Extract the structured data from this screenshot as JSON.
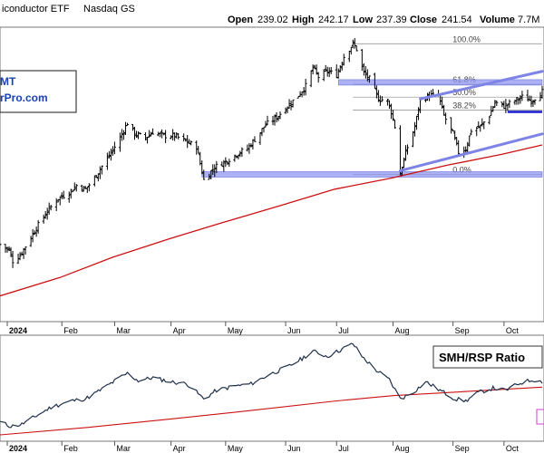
{
  "header": {
    "title": "iconductor ETF",
    "exchange": "Nasdaq GS",
    "open_label": "Open",
    "open_value": "239.02",
    "high_label": "High",
    "high_value": "242.17",
    "low_label": "Low",
    "low_value": "237.39",
    "close_label": "Close",
    "close_value": "241.54",
    "volume_label": "Volume",
    "volume_value": "7.7M"
  },
  "logo": {
    "line1": "MT",
    "line2": "rPro.com"
  },
  "ratio_legend": "SMH/RSP Ratio",
  "colors": {
    "price_bars": "#000000",
    "sma_line": "#cc1111",
    "support_band": "#8f97ee",
    "trendline": "#7d84e6",
    "ratio_line": "#1f2e4a",
    "ratio_ma": "#cc1111",
    "marker": "#1a1acc"
  },
  "chart_data": [
    {
      "type": "bar",
      "subtype": "ohlc",
      "title": "",
      "x_labels": [
        {
          "label": "2024",
          "date": "2024-01-02"
        },
        {
          "label": "Feb",
          "date": "2024-02-01"
        },
        {
          "label": "Mar",
          "date": "2024-03-01"
        },
        {
          "label": "Apr",
          "date": "2024-04-01"
        },
        {
          "label": "May",
          "date": "2024-05-01"
        },
        {
          "label": "Jun",
          "date": "2024-06-03"
        },
        {
          "label": "Jul",
          "date": "2024-07-01"
        },
        {
          "label": "Aug",
          "date": "2024-08-01"
        },
        {
          "label": "Sep",
          "date": "2024-09-03"
        },
        {
          "label": "Oct",
          "date": "2024-10-01"
        }
      ],
      "xlim": [
        "2023-12-29",
        "2024-10-23"
      ],
      "ylim": [
        130,
        290
      ],
      "close_path": [
        [
          "2023-12-29",
          172
        ],
        [
          "2024-01-03",
          169
        ],
        [
          "2024-01-05",
          163
        ],
        [
          "2024-01-09",
          166
        ],
        [
          "2024-01-12",
          171
        ],
        [
          "2024-01-18",
          181
        ],
        [
          "2024-01-24",
          190
        ],
        [
          "2024-01-30",
          197
        ],
        [
          "2024-02-05",
          200
        ],
        [
          "2024-02-09",
          204
        ],
        [
          "2024-02-14",
          202
        ],
        [
          "2024-02-19",
          208
        ],
        [
          "2024-02-22",
          213
        ],
        [
          "2024-02-27",
          220
        ],
        [
          "2024-03-04",
          230
        ],
        [
          "2024-03-08",
          238
        ],
        [
          "2024-03-12",
          232
        ],
        [
          "2024-03-18",
          230
        ],
        [
          "2024-03-22",
          233
        ],
        [
          "2024-03-28",
          231
        ],
        [
          "2024-04-03",
          231
        ],
        [
          "2024-04-09",
          228
        ],
        [
          "2024-04-15",
          225
        ],
        [
          "2024-04-19",
          207
        ],
        [
          "2024-04-25",
          214
        ],
        [
          "2024-05-01",
          217
        ],
        [
          "2024-05-07",
          221
        ],
        [
          "2024-05-13",
          224
        ],
        [
          "2024-05-17",
          229
        ],
        [
          "2024-05-23",
          237
        ],
        [
          "2024-05-29",
          241
        ],
        [
          "2024-06-04",
          247
        ],
        [
          "2024-06-10",
          253
        ],
        [
          "2024-06-14",
          258
        ],
        [
          "2024-06-18",
          268
        ],
        [
          "2024-06-21",
          263
        ],
        [
          "2024-06-26",
          266
        ],
        [
          "2024-07-01",
          264
        ],
        [
          "2024-07-05",
          274
        ],
        [
          "2024-07-10",
          281
        ],
        [
          "2024-07-12",
          278
        ],
        [
          "2024-07-16",
          265
        ],
        [
          "2024-07-19",
          262
        ],
        [
          "2024-07-24",
          251
        ],
        [
          "2024-07-29",
          250
        ],
        [
          "2024-07-31",
          244
        ],
        [
          "2024-08-02",
          236
        ],
        [
          "2024-08-05",
          210
        ],
        [
          "2024-08-08",
          222
        ],
        [
          "2024-08-13",
          236
        ],
        [
          "2024-08-16",
          250
        ],
        [
          "2024-08-21",
          253
        ],
        [
          "2024-08-26",
          253
        ],
        [
          "2024-08-29",
          242
        ],
        [
          "2024-09-03",
          232
        ],
        [
          "2024-09-06",
          222
        ],
        [
          "2024-09-10",
          224
        ],
        [
          "2024-09-13",
          234
        ],
        [
          "2024-09-18",
          236
        ],
        [
          "2024-09-23",
          242
        ],
        [
          "2024-09-26",
          249
        ],
        [
          "2024-10-01",
          247
        ],
        [
          "2024-10-07",
          250
        ],
        [
          "2024-10-11",
          252
        ],
        [
          "2024-10-16",
          250
        ],
        [
          "2024-10-22",
          255
        ]
      ],
      "sma_series": {
        "values": [
          [
            "2023-12-29",
            144
          ],
          [
            "2024-01-31",
            154
          ],
          [
            "2024-02-29",
            165
          ],
          [
            "2024-03-31",
            175
          ],
          [
            "2024-04-30",
            184
          ],
          [
            "2024-05-31",
            193
          ],
          [
            "2024-06-30",
            202
          ],
          [
            "2024-07-31",
            208
          ],
          [
            "2024-08-31",
            215
          ],
          [
            "2024-09-30",
            221
          ],
          [
            "2024-10-22",
            226
          ]
        ]
      },
      "support_zones": [
        {
          "price": 260,
          "from": "2024-07-02",
          "to": "2024-10-22"
        },
        {
          "price": 210,
          "from": "2024-04-18",
          "to": "2024-10-22"
        }
      ],
      "trendlines": [
        {
          "from": [
            "2024-08-05",
            212
          ],
          "to": [
            "2024-10-22",
            232
          ]
        },
        {
          "from": [
            "2024-08-16",
            251
          ],
          "to": [
            "2024-10-22",
            266
          ]
        }
      ],
      "marker_line": {
        "price": 244,
        "from": "2024-10-03",
        "to": "2024-10-22"
      },
      "fibonacci": {
        "from": "2024-07-10",
        "to": "2024-10-22",
        "levels": [
          {
            "label": "100.0%",
            "price": 281
          },
          {
            "label": "61.8%",
            "price": 259
          },
          {
            "label": "50.0%",
            "price": 252
          },
          {
            "label": "38.2%",
            "price": 245
          },
          {
            "label": "0.0%",
            "price": 210
          }
        ]
      }
    },
    {
      "type": "line",
      "title": "SMH/RSP Ratio",
      "x_labels": [
        {
          "label": "2024",
          "date": "2024-01-02"
        },
        {
          "label": "Feb",
          "date": "2024-02-01"
        },
        {
          "label": "Mar",
          "date": "2024-03-01"
        },
        {
          "label": "Apr",
          "date": "2024-04-01"
        },
        {
          "label": "May",
          "date": "2024-05-01"
        },
        {
          "label": "Jun",
          "date": "2024-06-03"
        },
        {
          "label": "Jul",
          "date": "2024-07-01"
        },
        {
          "label": "Aug",
          "date": "2024-08-01"
        },
        {
          "label": "Sep",
          "date": "2024-09-03"
        },
        {
          "label": "Oct",
          "date": "2024-10-01"
        }
      ],
      "xlim": [
        "2023-12-29",
        "2024-10-23"
      ],
      "ylim": [
        0,
        100
      ],
      "series": [
        {
          "values": [
            [
              "2023-12-29",
              18
            ],
            [
              "2024-01-04",
              14
            ],
            [
              "2024-01-10",
              16
            ],
            [
              "2024-01-18",
              24
            ],
            [
              "2024-01-26",
              32
            ],
            [
              "2024-02-06",
              38
            ],
            [
              "2024-02-14",
              40
            ],
            [
              "2024-02-22",
              48
            ],
            [
              "2024-03-04",
              60
            ],
            [
              "2024-03-08",
              64
            ],
            [
              "2024-03-14",
              57
            ],
            [
              "2024-03-22",
              60
            ],
            [
              "2024-04-01",
              56
            ],
            [
              "2024-04-10",
              54
            ],
            [
              "2024-04-19",
              40
            ],
            [
              "2024-04-26",
              48
            ],
            [
              "2024-05-06",
              52
            ],
            [
              "2024-05-15",
              54
            ],
            [
              "2024-05-24",
              62
            ],
            [
              "2024-06-04",
              70
            ],
            [
              "2024-06-12",
              78
            ],
            [
              "2024-06-18",
              85
            ],
            [
              "2024-06-26",
              80
            ],
            [
              "2024-07-03",
              86
            ],
            [
              "2024-07-10",
              92
            ],
            [
              "2024-07-15",
              80
            ],
            [
              "2024-07-22",
              68
            ],
            [
              "2024-07-30",
              58
            ],
            [
              "2024-08-05",
              40
            ],
            [
              "2024-08-12",
              46
            ],
            [
              "2024-08-19",
              56
            ],
            [
              "2024-08-27",
              48
            ],
            [
              "2024-09-04",
              40
            ],
            [
              "2024-09-10",
              38
            ],
            [
              "2024-09-17",
              46
            ],
            [
              "2024-09-25",
              50
            ],
            [
              "2024-10-02",
              48
            ],
            [
              "2024-10-10",
              55
            ],
            [
              "2024-10-17",
              58
            ],
            [
              "2024-10-22",
              56
            ]
          ]
        },
        {
          "values": [
            [
              "2023-12-29",
              6
            ],
            [
              "2024-02-15",
              13
            ],
            [
              "2024-04-01",
              21
            ],
            [
              "2024-05-15",
              29
            ],
            [
              "2024-07-01",
              38
            ],
            [
              "2024-08-01",
              43
            ],
            [
              "2024-09-01",
              46
            ],
            [
              "2024-10-01",
              49
            ],
            [
              "2024-10-22",
              51
            ]
          ]
        }
      ]
    }
  ]
}
